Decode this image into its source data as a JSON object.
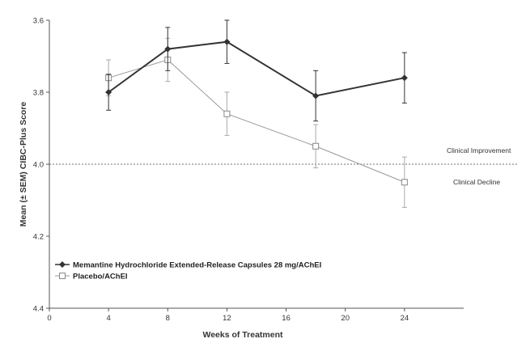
{
  "chart_data": {
    "type": "line",
    "title": "",
    "xlabel": "Weeks of Treatment",
    "ylabel": "Mean (± SEM) CIBC-Plus Score",
    "xlim": [
      0,
      28
    ],
    "ylim": [
      3.6,
      4.4
    ],
    "y_inverted": true,
    "x_ticks": [
      "0",
      "4",
      "8",
      "12",
      "16",
      "20",
      "24"
    ],
    "y_ticks": [
      "3.6",
      "3.8",
      "4.0",
      "4.2",
      "4.4"
    ],
    "reference_line": {
      "y": 4.0,
      "style": "dotted"
    },
    "annotations": [
      "Clinical Improvement",
      "Clinical Decline"
    ],
    "legend_position": "bottom-left",
    "series": [
      {
        "name": "Memantine Hydrochloride Extended-Release Capsules 28 mg/AChEI",
        "marker": "filled-diamond",
        "color": "#333333",
        "x": [
          4,
          8,
          12,
          18,
          24
        ],
        "y": [
          3.8,
          3.68,
          3.66,
          3.81,
          3.76
        ],
        "err": [
          0.05,
          0.06,
          0.06,
          0.07,
          0.07
        ]
      },
      {
        "name": "Placebo/AChEI",
        "marker": "open-square",
        "color": "#999999",
        "x": [
          4,
          8,
          12,
          18,
          24
        ],
        "y": [
          3.76,
          3.71,
          3.86,
          3.95,
          4.05
        ],
        "err": [
          0.05,
          0.06,
          0.06,
          0.06,
          0.07
        ]
      }
    ]
  }
}
